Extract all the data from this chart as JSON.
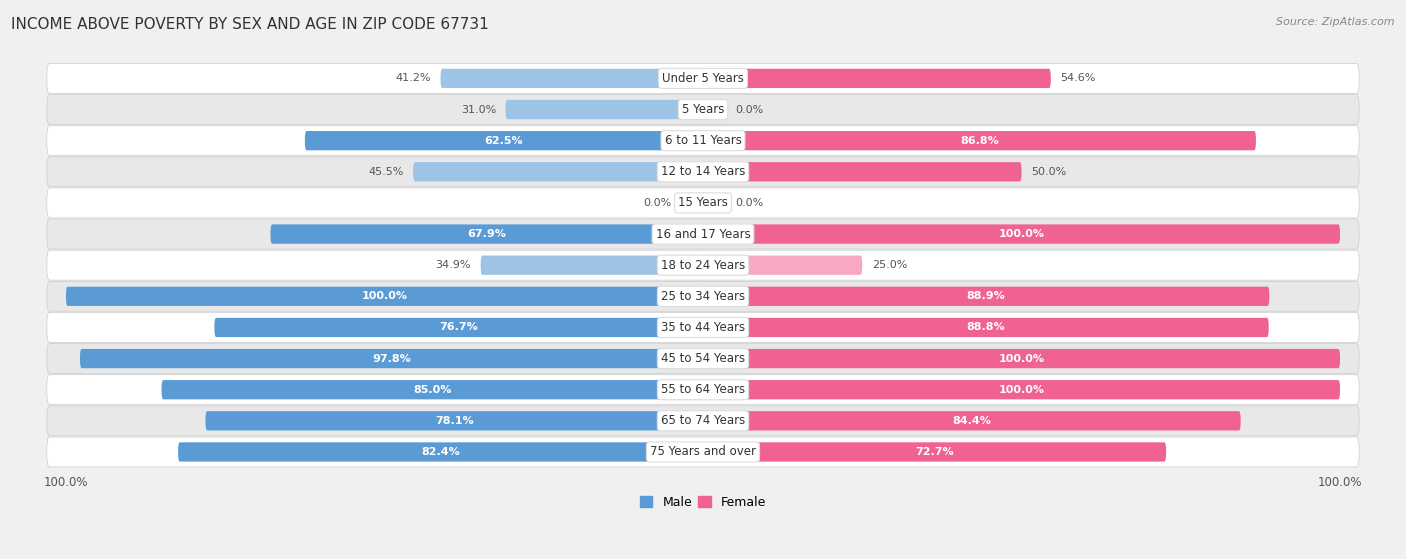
{
  "title": "INCOME ABOVE POVERTY BY SEX AND AGE IN ZIP CODE 67731",
  "source": "Source: ZipAtlas.com",
  "categories": [
    "Under 5 Years",
    "5 Years",
    "6 to 11 Years",
    "12 to 14 Years",
    "15 Years",
    "16 and 17 Years",
    "18 to 24 Years",
    "25 to 34 Years",
    "35 to 44 Years",
    "45 to 54 Years",
    "55 to 64 Years",
    "65 to 74 Years",
    "75 Years and over"
  ],
  "male_values": [
    41.2,
    31.0,
    62.5,
    45.5,
    0.0,
    67.9,
    34.9,
    100.0,
    76.7,
    97.8,
    85.0,
    78.1,
    82.4
  ],
  "female_values": [
    54.6,
    0.0,
    86.8,
    50.0,
    0.0,
    100.0,
    25.0,
    88.9,
    88.8,
    100.0,
    100.0,
    84.4,
    72.7
  ],
  "male_color_high": "#5B9BD5",
  "male_color_low": "#9DC3E6",
  "female_color_high": "#F06292",
  "female_color_low": "#F8A8C0",
  "male_label": "Male",
  "female_label": "Female",
  "background_color": "#f0f0f0",
  "row_bg_color": "#ffffff",
  "row_alt_bg_color": "#e8e8e8",
  "title_fontsize": 11,
  "label_fontsize": 8.5,
  "value_fontsize": 8
}
